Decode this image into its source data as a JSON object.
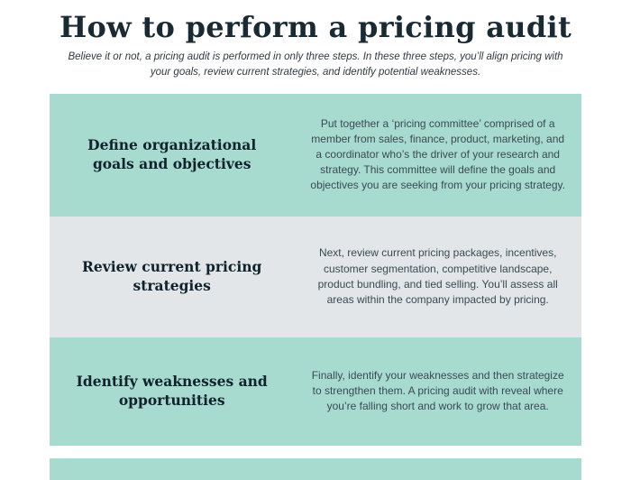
{
  "page": {
    "title": "How to perform a pricing audit",
    "subtitle": "Believe it or not, a pricing audit is performed in only three steps. In these three steps, you’ll align pricing with your goals, review current strategies, and identify potential weaknesses."
  },
  "colors": {
    "teal": "#a7dbd0",
    "gray": "#e3e6e8",
    "heading_text": "#10222b",
    "body_text": "#3a4a52"
  },
  "rows": [
    {
      "heading": "Define organizational goals and objectives",
      "body": "Put together a ‘pricing committee’ comprised of a member from sales, finance, product, marketing, and a coordinator who’s the driver of your research and strategy. This committee will define the goals and objectives you are seeking from your pricing strategy."
    },
    {
      "heading": "Review current pricing strategies",
      "body": "Next, review current pricing packages, incentives, customer segmentation, competitive landscape, product bundling, and tied selling. You’ll assess all areas within the company impacted by pricing."
    },
    {
      "heading": "Identify weaknesses and opportunities",
      "body": "Finally, identify your weaknesses and then strategize to strengthen them. A pricing audit with reveal where you’re falling short and work to grow that area."
    }
  ]
}
